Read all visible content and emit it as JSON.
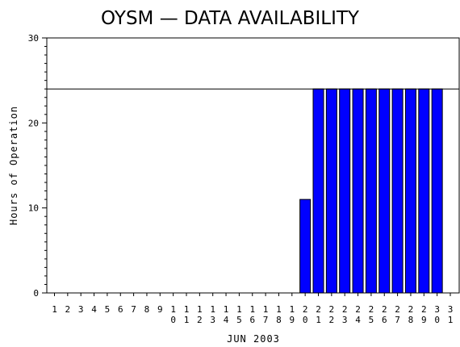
{
  "chart_data": {
    "type": "bar",
    "title": "OYSM — DATA AVAILABILITY",
    "xlabel": "JUN 2003",
    "ylabel": "Hours of Operation",
    "ylim": [
      0,
      30
    ],
    "yticks": [
      "0",
      "10",
      "20",
      "30"
    ],
    "reference_line": 24,
    "categories": [
      "1",
      "2",
      "3",
      "4",
      "5",
      "6",
      "7",
      "8",
      "9",
      "10",
      "11",
      "12",
      "13",
      "14",
      "15",
      "16",
      "17",
      "18",
      "19",
      "20",
      "21",
      "22",
      "23",
      "24",
      "25",
      "26",
      "27",
      "28",
      "29",
      "30",
      "31"
    ],
    "values": [
      0,
      0,
      0,
      0,
      0,
      0,
      0,
      0,
      0,
      0,
      0,
      0,
      0,
      0,
      0,
      0,
      0,
      0,
      0,
      11,
      24,
      24,
      24,
      24,
      24,
      24,
      24,
      24,
      24,
      24,
      0
    ],
    "bar_color": "#0000ff",
    "grid": false
  }
}
